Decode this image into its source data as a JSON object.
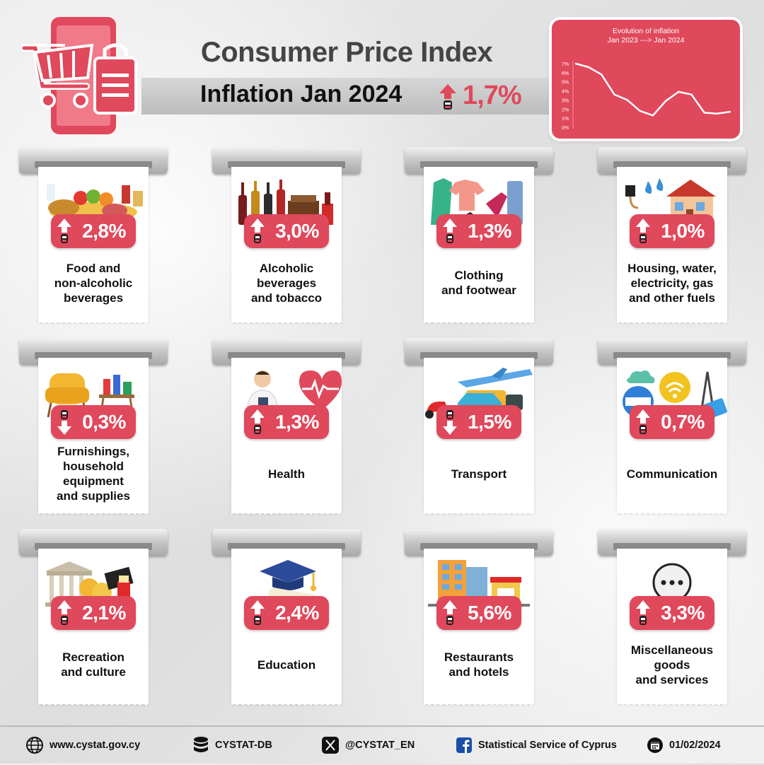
{
  "header": {
    "title": "Consumer Price Index",
    "subtitle": "Inflation Jan 2024",
    "headline_value": "1,7%",
    "headline_direction": "up"
  },
  "inflation_chart": {
    "title_line1": "Evolution of inflation",
    "title_line2": "Jan 2023 ---> Jan 2024",
    "y_ticks": [
      "7%",
      "6%",
      "5%",
      "4%",
      "3%",
      "2%",
      "1%",
      "0%"
    ],
    "chart_data": {
      "type": "line",
      "title": "Evolution of inflation Jan 2023 ---> Jan 2024",
      "x": [
        "2023-01",
        "2023-02",
        "2023-03",
        "2023-04",
        "2023-05",
        "2023-06",
        "2023-07",
        "2023-08",
        "2023-09",
        "2023-10",
        "2023-11",
        "2023-12",
        "2024-01"
      ],
      "values": [
        7.0,
        6.6,
        5.8,
        3.6,
        3.0,
        1.8,
        1.3,
        2.9,
        3.9,
        3.6,
        1.6,
        1.5,
        1.7
      ],
      "ylim": [
        0,
        7
      ],
      "grid": false
    }
  },
  "categories": [
    {
      "label": "Food and\nnon-alcoholic\nbeverages",
      "value": "2,8%",
      "direction": "up",
      "icon": "groceries-icon"
    },
    {
      "label": "Alcoholic\nbeverages\nand tobacco",
      "value": "3,0%",
      "direction": "up",
      "icon": "bottles-icon"
    },
    {
      "label": "Clothing\nand footwear",
      "value": "1,3%",
      "direction": "up",
      "icon": "clothing-icon"
    },
    {
      "label": "Housing, water,\nelectricity, gas\nand other fuels",
      "value": "1,0%",
      "direction": "up",
      "icon": "house-icon"
    },
    {
      "label": "Furnishings,\nhousehold equipment\nand supplies",
      "value": "0,3%",
      "direction": "down",
      "icon": "armchair-icon"
    },
    {
      "label": "Health",
      "value": "1,3%",
      "direction": "up",
      "icon": "heart-icon"
    },
    {
      "label": "Transport",
      "value": "1,5%",
      "direction": "down",
      "icon": "vehicles-icon"
    },
    {
      "label": "Communication",
      "value": "0,7%",
      "direction": "up",
      "icon": "wifi-icon"
    },
    {
      "label": "Recreation\nand culture",
      "value": "2,1%",
      "direction": "up",
      "icon": "theatre-icon"
    },
    {
      "label": "Education",
      "value": "2,4%",
      "direction": "up",
      "icon": "graduation-cap-icon"
    },
    {
      "label": "Restaurants\nand hotels",
      "value": "5,6%",
      "direction": "up",
      "icon": "hotel-icon"
    },
    {
      "label": "Miscellaneous\ngoods\nand services",
      "value": "3,3%",
      "direction": "up",
      "icon": "ellipsis-icon"
    }
  ],
  "footer": {
    "website": "www.cystat.gov.cy",
    "database": "CYSTAT-DB",
    "twitter": "@CYSTAT_EN",
    "facebook": "Statistical Service of Cyprus",
    "date": "01/02/2024"
  },
  "colors": {
    "accent": "#e0485c",
    "dark": "#111111",
    "band": "#c8c8c8"
  }
}
